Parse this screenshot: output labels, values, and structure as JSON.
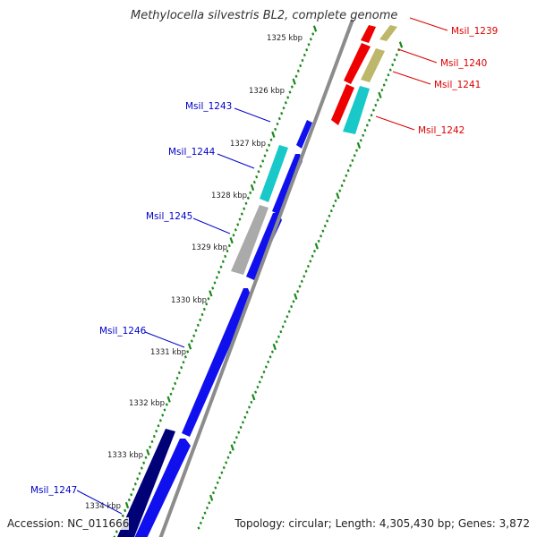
{
  "title": "Methylocella silvestris BL2, complete genome",
  "accession": "Accession: NC_011666",
  "topology": "Topology: circular; Length: 4,305,430 bp; Genes: 3,872",
  "colors": {
    "backbone": "#8c8c8c",
    "tick": "#1a8a1a",
    "forward_label": "#0000cc",
    "reverse_label": "#dd0000",
    "blue": "#1010ee",
    "navy": "#000077",
    "cyan": "#19c8c8",
    "gray": "#aaaaaa",
    "red": "#ee0000",
    "khaki": "#bdb76b"
  },
  "ticks": [
    {
      "label": "1325 kbp"
    },
    {
      "label": "1326 kbp"
    },
    {
      "label": "1327 kbp"
    },
    {
      "label": "1328 kbp"
    },
    {
      "label": "1329 kbp"
    },
    {
      "label": "1330 kbp"
    },
    {
      "label": "1331 kbp"
    },
    {
      "label": "1332 kbp"
    },
    {
      "label": "1333 kbp"
    },
    {
      "label": "1334 kbp"
    }
  ],
  "gene_labels": [
    {
      "name": "Msil_1239",
      "strand": "reverse"
    },
    {
      "name": "Msil_1240",
      "strand": "reverse"
    },
    {
      "name": "Msil_1241",
      "strand": "reverse"
    },
    {
      "name": "Msil_1242",
      "strand": "reverse"
    },
    {
      "name": "Msil_1243",
      "strand": "forward"
    },
    {
      "name": "Msil_1244",
      "strand": "forward"
    },
    {
      "name": "Msil_1245",
      "strand": "forward"
    },
    {
      "name": "Msil_1246",
      "strand": "forward"
    },
    {
      "name": "Msil_1247",
      "strand": "forward"
    }
  ]
}
